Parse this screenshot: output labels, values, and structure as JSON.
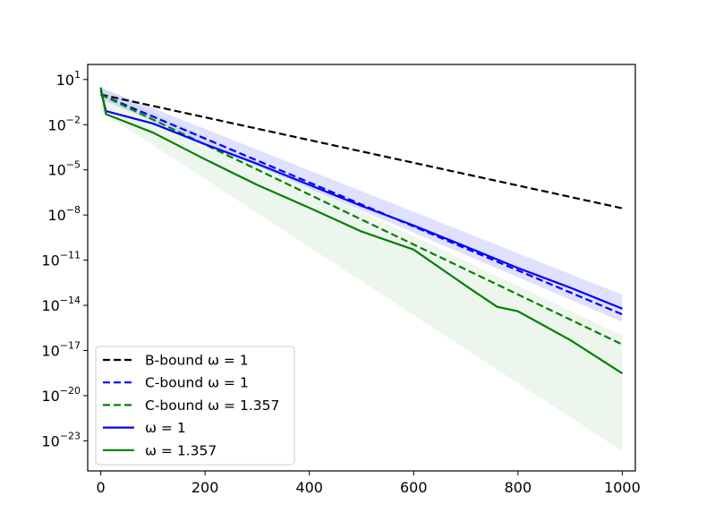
{
  "chart_data": {
    "type": "line",
    "title": "",
    "xlabel": "",
    "ylabel": "",
    "y_scale": "log10",
    "xlim": [
      -25,
      1025
    ],
    "ylim": [
      1e-25,
      100.0
    ],
    "x_ticks": [
      0,
      200,
      400,
      600,
      800,
      1000
    ],
    "x_tick_labels": [
      "0",
      "200",
      "400",
      "600",
      "800",
      "1000"
    ],
    "y_ticks": [
      10,
      0.01,
      1e-05,
      1e-08,
      1e-11,
      1e-14,
      1e-17,
      1e-20,
      1e-23
    ],
    "y_tick_labels": [
      {
        "base": "10",
        "exp": "1"
      },
      {
        "base": "10",
        "exp": "−2"
      },
      {
        "base": "10",
        "exp": "−5"
      },
      {
        "base": "10",
        "exp": "−8"
      },
      {
        "base": "10",
        "exp": "−11"
      },
      {
        "base": "10",
        "exp": "−14"
      },
      {
        "base": "10",
        "exp": "−17"
      },
      {
        "base": "10",
        "exp": "−20"
      },
      {
        "base": "10",
        "exp": "−23"
      }
    ],
    "grid": false,
    "legend_position": "lower-left",
    "series": [
      {
        "name": "B-bound ω = 1",
        "style": "dashed",
        "color": "#000000",
        "x": [
          0,
          1000
        ],
        "y": [
          1,
          2.8e-08
        ]
      },
      {
        "name": "C-bound ω = 1",
        "style": "dashed",
        "color": "#0000ff",
        "x": [
          0,
          1000
        ],
        "y": [
          1,
          2.5e-15
        ]
      },
      {
        "name": "C-bound ω = 1.357",
        "style": "dashed",
        "color": "#008000",
        "x": [
          0,
          1000
        ],
        "y": [
          1,
          2.5e-17
        ]
      },
      {
        "name": "ω = 1",
        "style": "solid",
        "color": "#0000ff",
        "x": [
          0,
          10,
          100,
          200,
          300,
          400,
          500,
          600,
          700,
          800,
          900,
          1000
        ],
        "y": [
          2,
          0.08,
          0.012,
          0.0005,
          2.5e-05,
          1e-06,
          4e-08,
          2e-09,
          8e-11,
          3e-12,
          1.5e-13,
          6e-15
        ]
      },
      {
        "name": "ω = 1.357",
        "style": "solid",
        "color": "#008000",
        "x": [
          0,
          10,
          100,
          200,
          300,
          400,
          500,
          550,
          600,
          700,
          760,
          800,
          900,
          1000
        ],
        "y": [
          3,
          0.05,
          0.003,
          5e-05,
          1e-06,
          3e-08,
          8e-10,
          2e-10,
          5e-11,
          2e-13,
          8e-15,
          4e-15,
          5e-17,
          3e-19
        ]
      }
    ],
    "legend": [
      {
        "label": "B-bound ω = 1",
        "color": "#000000",
        "style": "dashed"
      },
      {
        "label": "C-bound ω = 1",
        "color": "#0000ff",
        "style": "dashed"
      },
      {
        "label": "C-bound ω = 1.357",
        "color": "#008000",
        "style": "dashed"
      },
      {
        "label": "ω = 1",
        "color": "#0000ff",
        "style": "solid"
      },
      {
        "label": "ω = 1.357",
        "color": "#008000",
        "style": "solid"
      }
    ],
    "shaded_bands": [
      {
        "color": "#0000ff",
        "opacity": 0.12,
        "x": [
          0,
          1000
        ],
        "y_low": [
          0.5,
          8e-16
        ],
        "y_high": [
          3,
          5e-14
        ]
      },
      {
        "color": "#008000",
        "opacity": 0.07,
        "x": [
          0,
          1000
        ],
        "y_low": [
          0.08,
          2e-24
        ],
        "y_high": [
          3,
          1e-16
        ]
      }
    ]
  }
}
